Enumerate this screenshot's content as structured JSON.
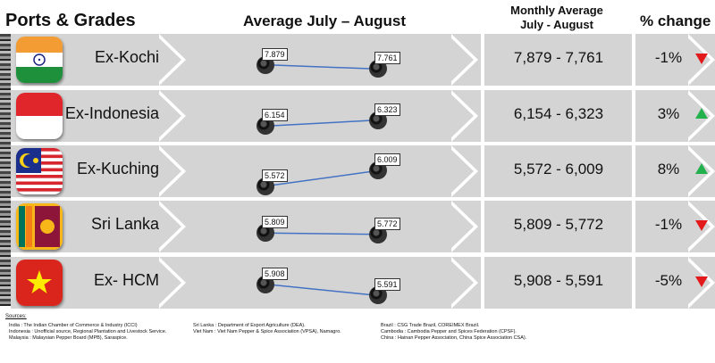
{
  "headers": {
    "ports": "Ports & Grades",
    "average": "Average July – August",
    "monthly_line1": "Monthly Average",
    "monthly_line2": "July - August",
    "pct": "% change"
  },
  "colors": {
    "up": "#22b14c",
    "down": "#e31a1c",
    "line": "#4472c4",
    "band": "#d4d4d4"
  },
  "chart_data": {
    "type": "line",
    "title": "Average July – August",
    "x": [
      "July",
      "August"
    ],
    "series": [
      {
        "name": "Ex-Kochi",
        "values": [
          7879,
          7761
        ],
        "labels": [
          "7.879",
          "7.761"
        ]
      },
      {
        "name": "Ex-Indonesia",
        "values": [
          6154,
          6323
        ],
        "labels": [
          "6.154",
          "6.323"
        ]
      },
      {
        "name": "Ex-Kuching",
        "values": [
          5572,
          6009
        ],
        "labels": [
          "5.572",
          "6.009"
        ]
      },
      {
        "name": "Sri Lanka",
        "values": [
          5809,
          5772
        ],
        "labels": [
          "5.809",
          "5.772"
        ]
      },
      {
        "name": "Ex- HCM",
        "values": [
          5908,
          5591
        ],
        "labels": [
          "5.908",
          "5.591"
        ]
      }
    ]
  },
  "rows": [
    {
      "port": "Ex-Kochi",
      "flag": "india-flag",
      "range": "7,879 - 7,761",
      "pct": "-1%",
      "trend": "down"
    },
    {
      "port": "Ex-Indonesia",
      "flag": "indonesia-flag",
      "range": "6,154 - 6,323",
      "pct": "3%",
      "trend": "up"
    },
    {
      "port": "Ex-Kuching",
      "flag": "malaysia-flag",
      "range": "5,572 - 6,009",
      "pct": "8%",
      "trend": "up"
    },
    {
      "port": "Sri Lanka",
      "flag": "sri-lanka-flag",
      "range": "5,809 - 5,772",
      "pct": "-1%",
      "trend": "down"
    },
    {
      "port": "Ex- HCM",
      "flag": "vietnam-flag",
      "range": "5,908 - 5,591",
      "pct": "-5%",
      "trend": "down"
    }
  ],
  "sources": {
    "title": "Sources:",
    "col1": [
      "India : The Indian Chamber of Commerce & Industry (ICCI)",
      "Indonesia : Unofficial source, Regional Plantation and Livestock Service.",
      "Malaysia : Malaysian Pepper Board (MPB), Saraspice."
    ],
    "col2": [
      "Sri Lanka : Department of Export Agriculture (DEA).",
      "Viet Nam : Viet Nam Pepper & Spice Association (VPSA), Namagro."
    ],
    "col3": [
      "Brazil : CSG Trade Brazil, COREIMEX Brazil.",
      "Cambodia : Cambodia Pepper and Spices Federation (CPSF).",
      "China : Hainan Pepper Association, China Spice Association CSA)."
    ]
  }
}
